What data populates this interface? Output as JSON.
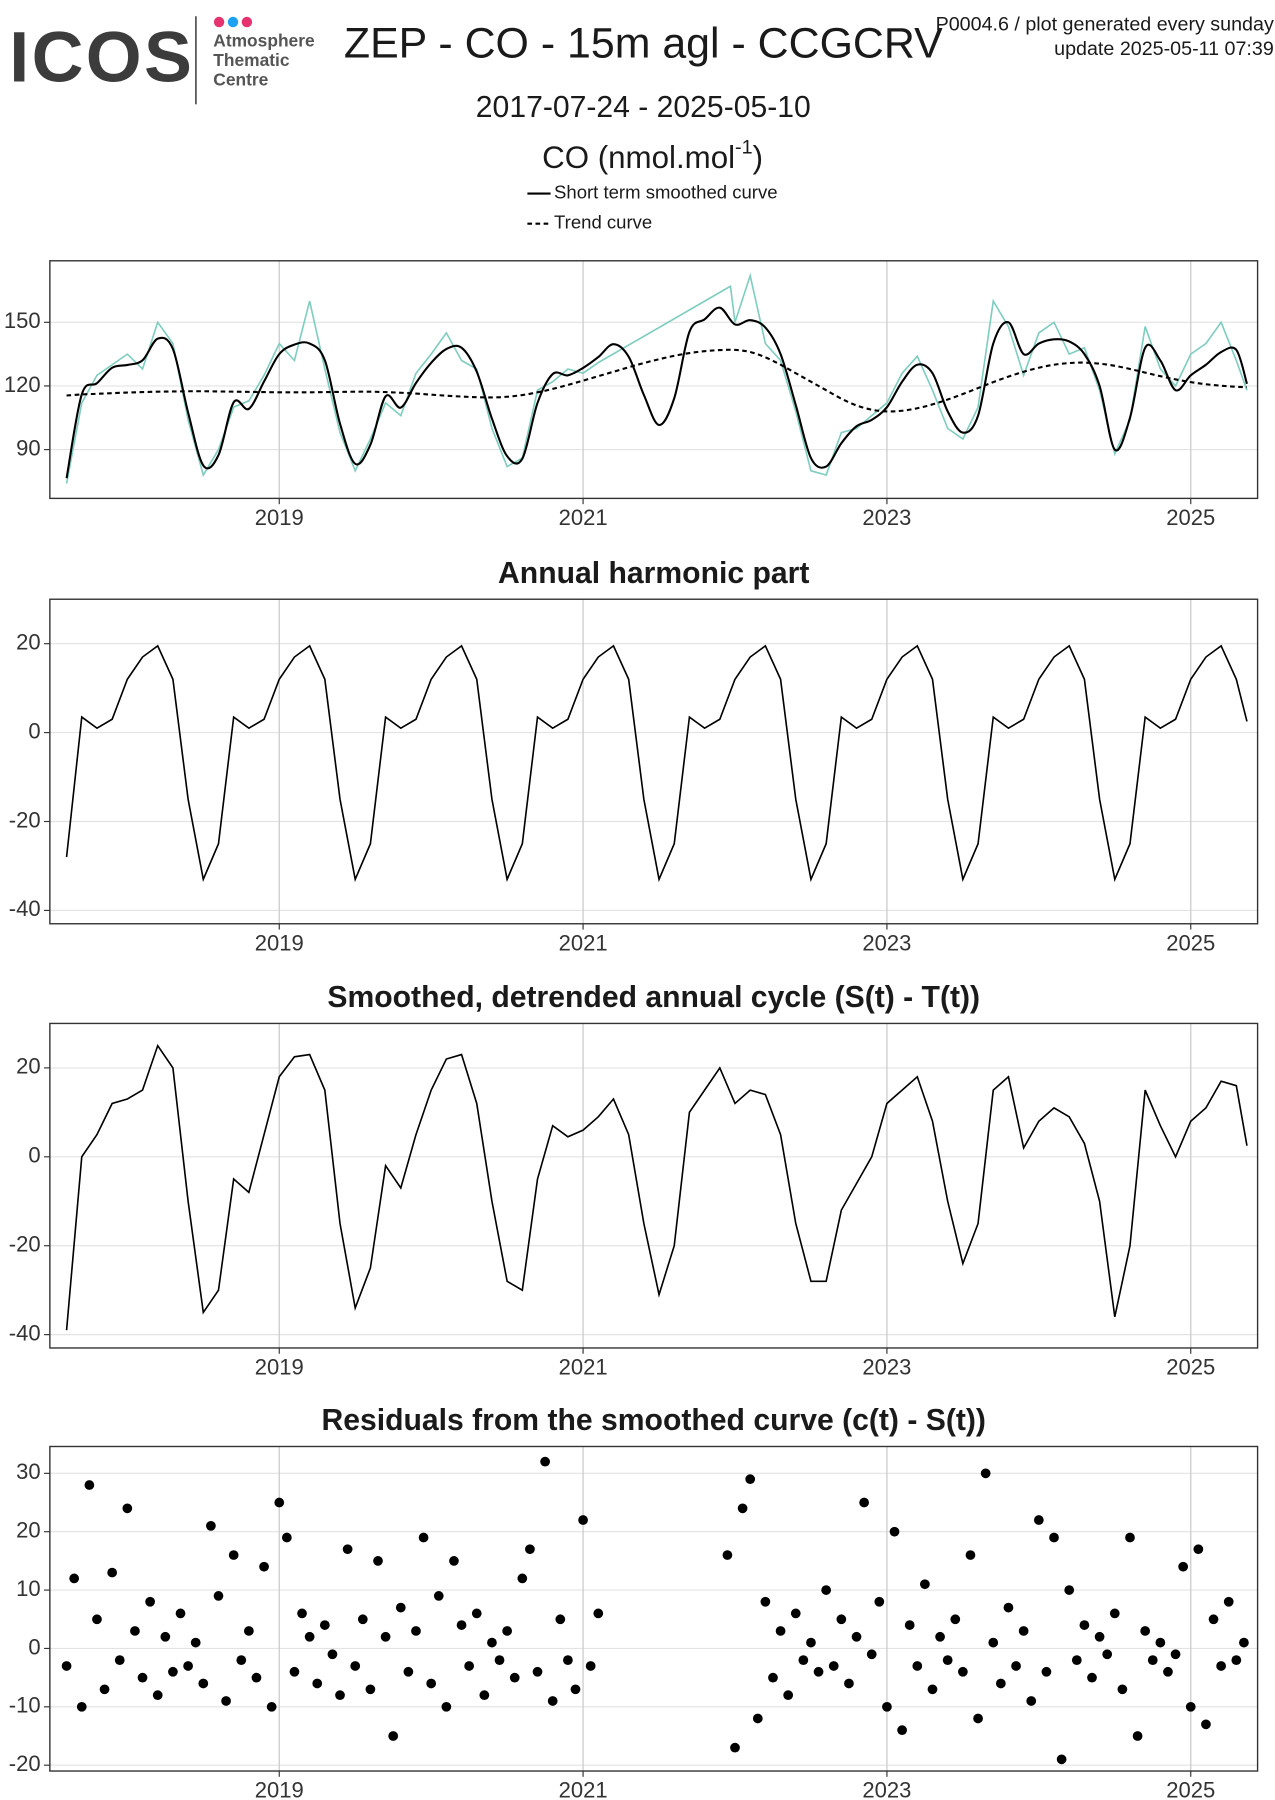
{
  "header": {
    "logo": "ICOS",
    "logo_lines": [
      "Atmosphere",
      "Thematic",
      "Centre"
    ],
    "title": "ZEP - CO - 15m agl - CCGCRV",
    "subtitle": "2017-07-24 - 2025-05-10",
    "note": [
      "P0004.6 / plot generated every sunday",
      "update  2025-05-11 07:39"
    ]
  },
  "chart_data": [
    {
      "type": "line",
      "ylabel": [
        "CO (nmol.mol",
        "-1",
        ")"
      ],
      "xlim": [
        2017.49,
        2025.44
      ],
      "xticks": [
        2019,
        2021,
        2023,
        2025
      ],
      "ylim": [
        67,
        179
      ],
      "yticks": [
        90,
        120,
        150
      ],
      "grid": true,
      "x": [
        2017.6,
        2017.7,
        2017.8,
        2017.9,
        2018,
        2018.1,
        2018.2,
        2018.3,
        2018.4,
        2018.5,
        2018.6,
        2018.7,
        2018.8,
        2018.9,
        2019,
        2019.1,
        2019.2,
        2019.3,
        2019.4,
        2019.5,
        2019.6,
        2019.7,
        2019.8,
        2019.9,
        2020,
        2020.1,
        2020.2,
        2020.3,
        2020.4,
        2020.5,
        2020.6,
        2020.7,
        2020.8,
        2020.9,
        2021,
        2021.1,
        2021.2,
        2021.3,
        2021.4,
        2021.5,
        2021.6,
        2021.7,
        2021.8,
        2021.9,
        2022,
        2022.1,
        2022.2,
        2022.3,
        2022.4,
        2022.5,
        2022.6,
        2022.7,
        2022.8,
        2022.9,
        2023,
        2023.1,
        2023.2,
        2023.3,
        2023.4,
        2023.5,
        2023.6,
        2023.7,
        2023.8,
        2023.9,
        2024,
        2024.1,
        2024.2,
        2024.3,
        2024.4,
        2024.5,
        2024.6,
        2024.7,
        2024.8,
        2024.9,
        2025,
        2025.1,
        2025.2,
        2025.3,
        2025.37
      ],
      "series": [
        {
          "color": "#7fcdbf",
          "line_style": "solid",
          "x": [
            2017.6,
            2017.7,
            2017.8,
            2017.9,
            2018,
            2018.1,
            2018.2,
            2018.3,
            2018.4,
            2018.5,
            2018.6,
            2018.7,
            2018.8,
            2018.9,
            2019,
            2019.1,
            2019.2,
            2019.3,
            2019.4,
            2019.5,
            2019.6,
            2019.7,
            2019.8,
            2019.9,
            2020,
            2020.1,
            2020.2,
            2020.3,
            2020.4,
            2020.5,
            2020.6,
            2020.7,
            2020.8,
            2020.9,
            2021,
            2021.1,
            2021.97,
            2022,
            2022.1,
            2022.2,
            2022.3,
            2022.4,
            2022.5,
            2022.6,
            2022.7,
            2022.8,
            2022.9,
            2023,
            2023.1,
            2023.2,
            2023.3,
            2023.4,
            2023.5,
            2023.6,
            2023.7,
            2023.8,
            2023.9,
            2024,
            2024.1,
            2024.2,
            2024.3,
            2024.4,
            2024.5,
            2024.6,
            2024.7,
            2024.8,
            2024.9,
            2025,
            2025.1,
            2025.2,
            2025.3,
            2025.37
          ],
          "values": [
            74,
            112,
            125,
            130,
            135,
            128,
            150,
            140,
            104,
            78,
            90,
            110,
            113,
            125,
            140,
            132,
            160,
            128,
            98,
            80,
            95,
            112,
            106,
            126,
            135,
            145,
            132,
            128,
            100,
            82,
            86,
            118,
            122,
            128,
            126,
            131,
            167,
            150,
            172,
            140,
            132,
            108,
            80,
            78,
            98,
            100,
            106,
            112,
            126,
            134,
            118,
            100,
            95,
            110,
            160,
            148,
            125,
            145,
            150,
            135,
            138,
            118,
            88,
            104,
            148,
            128,
            120,
            135,
            140,
            150,
            132,
            118
          ]
        },
        {
          "name": "Short term smoothed curve",
          "color": "#000000",
          "line_style": "solid",
          "values": [
            76.5,
            116,
            121.3,
            128.6,
            129.9,
            132.1,
            142.3,
            137.4,
            107.5,
            82.5,
            87.4,
            112.3,
            109.2,
            122.1,
            135,
            139.5,
            140,
            132.1,
            102.2,
            83.3,
            92.3,
            115.1,
            109.8,
            121.4,
            130.9,
            137.4,
            138,
            126.7,
            104.6,
            86.9,
            85.7,
            112,
            125.6,
            125,
            128.5,
            133.6,
            139.7,
            133.8,
            115.8,
            101.6,
            114.2,
            145.5,
            151.4,
            156.9,
            149,
            151,
            147.5,
            135,
            111,
            86,
            82,
            93,
            101,
            104,
            110,
            122,
            130,
            126,
            108,
            98,
            106,
            140,
            150,
            135,
            140,
            142,
            141,
            135,
            120,
            90,
            105,
            138,
            132,
            118,
            125,
            130,
            136,
            137,
            121
          ]
        },
        {
          "name": "Trend curve",
          "color": "#000000",
          "line_style": "dashed",
          "values": [
            115.5,
            116,
            116.3,
            116.6,
            116.9,
            117.1,
            117.3,
            117.4,
            117.5,
            117.5,
            117.4,
            117.3,
            117.2,
            117.1,
            117,
            117,
            117,
            117.1,
            117.2,
            117.3,
            117.3,
            117.1,
            116.8,
            116.4,
            115.9,
            115.4,
            115,
            114.7,
            114.6,
            114.9,
            115.7,
            117,
            118.6,
            120.5,
            122.5,
            124.6,
            126.7,
            128.8,
            130.8,
            132.6,
            134.2,
            135.5,
            136.4,
            136.9,
            137,
            136,
            133.5,
            130,
            126,
            122,
            118,
            114,
            110.8,
            108.8,
            108,
            108.3,
            109.5,
            111.3,
            113.6,
            116.2,
            119,
            121.8,
            124.4,
            126.7,
            128.6,
            130,
            130.8,
            131,
            130.5,
            129.5,
            128,
            126.3,
            124.6,
            123.1,
            121.8,
            120.8,
            120.1,
            119.6,
            119.4
          ]
        }
      ]
    },
    {
      "type": "line",
      "title": "Annual harmonic part",
      "xlim": [
        2017.49,
        2025.44
      ],
      "xticks": [
        2019,
        2021,
        2023,
        2025
      ],
      "ylim": [
        -43,
        30
      ],
      "yticks": [
        20,
        0,
        -20,
        -40
      ],
      "grid": true,
      "x": [
        2017.6,
        2017.7,
        2017.8,
        2017.9,
        2018,
        2018.1,
        2018.2,
        2018.3,
        2018.4,
        2018.5,
        2018.6,
        2018.7,
        2018.8,
        2018.9,
        2019,
        2019.1,
        2019.2,
        2019.3,
        2019.4,
        2019.5,
        2019.6,
        2019.7,
        2019.8,
        2019.9,
        2020,
        2020.1,
        2020.2,
        2020.3,
        2020.4,
        2020.5,
        2020.6,
        2020.7,
        2020.8,
        2020.9,
        2021,
        2021.1,
        2021.2,
        2021.3,
        2021.4,
        2021.5,
        2021.6,
        2021.7,
        2021.8,
        2021.9,
        2022,
        2022.1,
        2022.2,
        2022.3,
        2022.4,
        2022.5,
        2022.6,
        2022.7,
        2022.8,
        2022.9,
        2023,
        2023.1,
        2023.2,
        2023.3,
        2023.4,
        2023.5,
        2023.6,
        2023.7,
        2023.8,
        2023.9,
        2024,
        2024.1,
        2024.2,
        2024.3,
        2024.4,
        2024.5,
        2024.6,
        2024.7,
        2024.8,
        2024.9,
        2025,
        2025.1,
        2025.2,
        2025.3,
        2025.37
      ],
      "series": [
        {
          "color": "#000000",
          "line_style": "solid",
          "values": [
            -28,
            3.5,
            1,
            3,
            12,
            17,
            19.5,
            12,
            -15,
            -33,
            -25,
            3.5,
            1,
            3,
            12,
            17,
            19.5,
            12,
            -15,
            -33,
            -25,
            3.5,
            1,
            3,
            12,
            17,
            19.5,
            12,
            -15,
            -33,
            -25,
            3.5,
            1,
            3,
            12,
            17,
            19.5,
            12,
            -15,
            -33,
            -25,
            3.5,
            1,
            3,
            12,
            17,
            19.5,
            12,
            -15,
            -33,
            -25,
            3.5,
            1,
            3,
            12,
            17,
            19.5,
            12,
            -15,
            -33,
            -25,
            3.5,
            1,
            3,
            12,
            17,
            19.5,
            12,
            -15,
            -33,
            -25,
            3.5,
            1,
            3,
            12,
            17,
            19.5,
            12,
            2.5
          ]
        }
      ]
    },
    {
      "type": "line",
      "title": "Smoothed, detrended annual cycle (S(t) - T(t))",
      "xlim": [
        2017.49,
        2025.44
      ],
      "xticks": [
        2019,
        2021,
        2023,
        2025
      ],
      "ylim": [
        -43,
        30
      ],
      "yticks": [
        20,
        0,
        -20,
        -40
      ],
      "grid": true,
      "x": [
        2017.6,
        2017.7,
        2017.8,
        2017.9,
        2018,
        2018.1,
        2018.2,
        2018.3,
        2018.4,
        2018.5,
        2018.6,
        2018.7,
        2018.8,
        2018.9,
        2019,
        2019.1,
        2019.2,
        2019.3,
        2019.4,
        2019.5,
        2019.6,
        2019.7,
        2019.8,
        2019.9,
        2020,
        2020.1,
        2020.2,
        2020.3,
        2020.4,
        2020.5,
        2020.6,
        2020.7,
        2020.8,
        2020.9,
        2021,
        2021.1,
        2021.2,
        2021.3,
        2021.4,
        2021.5,
        2021.6,
        2021.7,
        2021.8,
        2021.9,
        2022,
        2022.1,
        2022.2,
        2022.3,
        2022.4,
        2022.5,
        2022.6,
        2022.7,
        2022.8,
        2022.9,
        2023,
        2023.1,
        2023.2,
        2023.3,
        2023.4,
        2023.5,
        2023.6,
        2023.7,
        2023.8,
        2023.9,
        2024,
        2024.1,
        2024.2,
        2024.3,
        2024.4,
        2024.5,
        2024.6,
        2024.7,
        2024.8,
        2024.9,
        2025,
        2025.1,
        2025.2,
        2025.3,
        2025.37
      ],
      "series": [
        {
          "color": "#000000",
          "line_style": "solid",
          "values": [
            -39,
            0,
            5,
            12,
            13,
            15,
            25,
            20,
            -10,
            -35,
            -30,
            -5,
            -8,
            5,
            18,
            22.5,
            23,
            15,
            -15,
            -34,
            -25,
            -2,
            -7,
            5,
            15,
            22,
            23,
            12,
            -10,
            -28,
            -30,
            -5,
            7,
            4.5,
            6,
            9,
            13,
            5,
            -15,
            -31,
            -20,
            10,
            15,
            20,
            12,
            15,
            14,
            5,
            -15,
            -28,
            -28,
            -12,
            -6,
            0,
            12,
            15,
            18,
            8,
            -10,
            -24,
            -15,
            15,
            18,
            2,
            8,
            11,
            9,
            3,
            -10,
            -36,
            -20,
            15,
            7,
            0,
            8,
            11,
            17,
            16,
            2.5
          ]
        }
      ]
    },
    {
      "type": "scatter",
      "title": "Residuals from the smoothed curve (c(t) - S(t))",
      "xlim": [
        2017.49,
        2025.44
      ],
      "xticks": [
        2019,
        2021,
        2023,
        2025
      ],
      "ylim": [
        -21,
        34.6
      ],
      "yticks": [
        30,
        20,
        10,
        0,
        -10,
        -20
      ],
      "grid": true,
      "color": "#000000",
      "x": [
        2017.6,
        2017.65,
        2017.7,
        2017.75,
        2017.8,
        2017.85,
        2017.9,
        2017.95,
        2018,
        2018.05,
        2018.1,
        2018.15,
        2018.2,
        2018.25,
        2018.3,
        2018.35,
        2018.4,
        2018.45,
        2018.5,
        2018.55,
        2018.6,
        2018.65,
        2018.7,
        2018.75,
        2018.8,
        2018.85,
        2018.9,
        2018.95,
        2019,
        2019.05,
        2019.1,
        2019.15,
        2019.2,
        2019.25,
        2019.3,
        2019.35,
        2019.4,
        2019.45,
        2019.5,
        2019.55,
        2019.6,
        2019.65,
        2019.7,
        2019.75,
        2019.8,
        2019.85,
        2019.9,
        2019.95,
        2020,
        2020.05,
        2020.1,
        2020.15,
        2020.2,
        2020.25,
        2020.3,
        2020.35,
        2020.4,
        2020.45,
        2020.5,
        2020.55,
        2020.6,
        2020.65,
        2020.7,
        2020.75,
        2020.8,
        2020.85,
        2020.9,
        2020.95,
        2021,
        2021.05,
        2021.1,
        2021.95,
        2022,
        2022.05,
        2022.1,
        2022.15,
        2022.2,
        2022.25,
        2022.3,
        2022.35,
        2022.4,
        2022.45,
        2022.5,
        2022.55,
        2022.6,
        2022.65,
        2022.7,
        2022.75,
        2022.8,
        2022.85,
        2022.9,
        2022.95,
        2023,
        2023.05,
        2023.1,
        2023.15,
        2023.2,
        2023.25,
        2023.3,
        2023.35,
        2023.4,
        2023.45,
        2023.5,
        2023.55,
        2023.6,
        2023.65,
        2023.7,
        2023.75,
        2023.8,
        2023.85,
        2023.9,
        2023.95,
        2024,
        2024.05,
        2024.1,
        2024.15,
        2024.2,
        2024.25,
        2024.3,
        2024.35,
        2024.4,
        2024.45,
        2024.5,
        2024.55,
        2024.6,
        2024.65,
        2024.7,
        2024.75,
        2024.8,
        2024.85,
        2024.9,
        2024.95,
        2025,
        2025.05,
        2025.1,
        2025.15,
        2025.2,
        2025.25,
        2025.3,
        2025.35
      ],
      "values": [
        -3,
        12,
        -10,
        28,
        5,
        -7,
        13,
        -2,
        24,
        3,
        -5,
        8,
        -8,
        2,
        -4,
        6,
        -3,
        1,
        -6,
        21,
        9,
        -9,
        16,
        -2,
        3,
        -5,
        14,
        -10,
        25,
        19,
        -4,
        6,
        2,
        -6,
        4,
        -1,
        -8,
        17,
        -3,
        5,
        -7,
        15,
        2,
        -15,
        7,
        -4,
        3,
        19,
        -6,
        9,
        -10,
        15,
        4,
        -3,
        6,
        -8,
        1,
        -2,
        3,
        -5,
        12,
        17,
        -4,
        32,
        -9,
        5,
        -2,
        -7,
        22,
        -3,
        6,
        16,
        -17,
        24,
        29,
        -12,
        8,
        -5,
        3,
        -8,
        6,
        -2,
        1,
        -4,
        10,
        -3,
        5,
        -6,
        2,
        25,
        -1,
        8,
        -10,
        20,
        -14,
        4,
        -3,
        11,
        -7,
        2,
        -2,
        5,
        -4,
        16,
        -12,
        30,
        1,
        -6,
        7,
        -3,
        3,
        -9,
        22,
        -4,
        19,
        -19,
        10,
        -2,
        4,
        -5,
        2,
        -1,
        6,
        -7,
        19,
        -15,
        3,
        -2,
        1,
        -4,
        -1,
        14,
        -10,
        17,
        -13,
        5,
        -3,
        8,
        -2,
        1
      ]
    }
  ]
}
